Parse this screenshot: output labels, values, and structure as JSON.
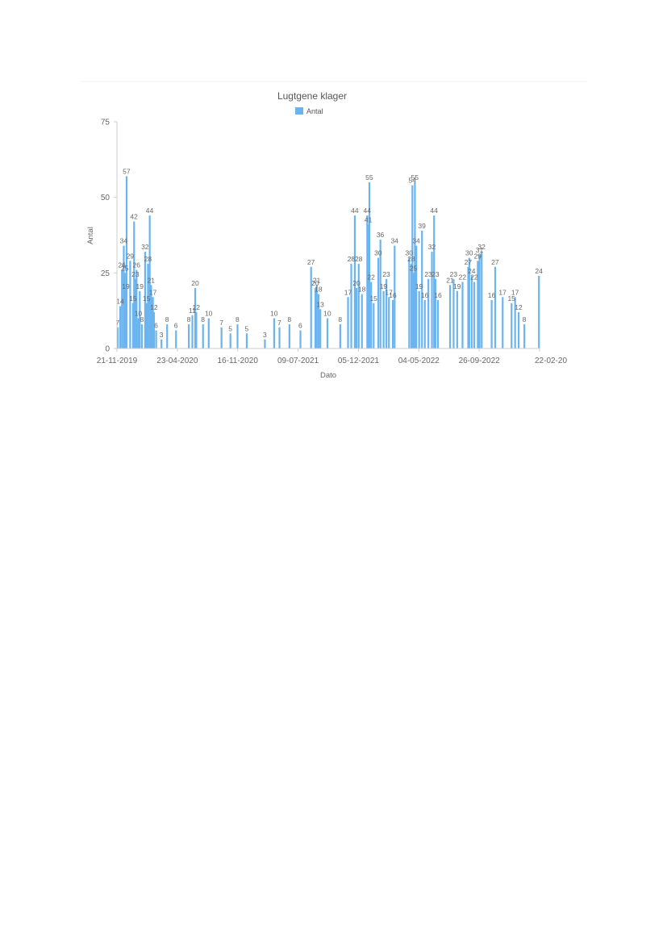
{
  "chart_data": {
    "type": "bar",
    "title": "Lugtgene klager",
    "xlabel": "Dato",
    "ylabel": "Antal",
    "ylim": [
      0,
      75
    ],
    "yticks": [
      0,
      25,
      50,
      75
    ],
    "x_range": [
      "2019-11-21",
      "2023-02-22"
    ],
    "x_ticks": [
      "21-11-2019",
      "23-04-2020",
      "16-11-2020",
      "09-07-2021",
      "05-12-2021",
      "04-05-2022",
      "26-09-2022",
      "22-02-20"
    ],
    "grid": false,
    "legend": "top",
    "series": [
      {
        "name": "Antal",
        "color": "#6ab4f0",
        "points": [
          [
            "2019-11-23",
            7
          ],
          [
            "2019-11-30",
            14
          ],
          [
            "2019-12-05",
            26
          ],
          [
            "2019-12-10",
            34
          ],
          [
            "2019-12-13",
            25
          ],
          [
            "2019-12-16",
            19
          ],
          [
            "2019-12-18",
            57
          ],
          [
            "2019-12-28",
            29
          ],
          [
            "2020-01-05",
            15
          ],
          [
            "2020-01-08",
            42
          ],
          [
            "2020-01-12",
            23
          ],
          [
            "2020-01-15",
            26
          ],
          [
            "2020-01-20",
            10
          ],
          [
            "2020-01-24",
            19
          ],
          [
            "2020-01-30",
            8
          ],
          [
            "2020-02-08",
            32
          ],
          [
            "2020-02-12",
            15
          ],
          [
            "2020-02-16",
            28
          ],
          [
            "2020-02-21",
            44
          ],
          [
            "2020-02-25",
            21
          ],
          [
            "2020-03-01",
            17
          ],
          [
            "2020-03-04",
            12
          ],
          [
            "2020-03-10",
            6
          ],
          [
            "2020-03-25",
            3
          ],
          [
            "2020-04-10",
            8
          ],
          [
            "2020-05-05",
            6
          ],
          [
            "2020-06-10",
            8
          ],
          [
            "2020-06-20",
            11
          ],
          [
            "2020-06-28",
            20
          ],
          [
            "2020-07-01",
            12
          ],
          [
            "2020-07-20",
            8
          ],
          [
            "2020-08-05",
            10
          ],
          [
            "2020-09-10",
            7
          ],
          [
            "2020-10-05",
            5
          ],
          [
            "2020-10-25",
            8
          ],
          [
            "2020-11-20",
            5
          ],
          [
            "2021-01-10",
            3
          ],
          [
            "2021-02-05",
            10
          ],
          [
            "2021-02-20",
            7
          ],
          [
            "2021-03-20",
            8
          ],
          [
            "2021-04-20",
            6
          ],
          [
            "2021-05-20",
            27
          ],
          [
            "2021-06-01",
            20
          ],
          [
            "2021-06-05",
            21
          ],
          [
            "2021-06-10",
            18
          ],
          [
            "2021-06-15",
            13
          ],
          [
            "2021-07-05",
            10
          ],
          [
            "2021-08-10",
            8
          ],
          [
            "2021-09-01",
            17
          ],
          [
            "2021-09-10",
            28
          ],
          [
            "2021-09-20",
            44
          ],
          [
            "2021-09-25",
            20
          ],
          [
            "2021-10-01",
            28
          ],
          [
            "2021-10-10",
            18
          ],
          [
            "2021-10-25",
            44
          ],
          [
            "2021-10-28",
            41
          ],
          [
            "2021-10-31",
            55
          ],
          [
            "2021-11-05",
            22
          ],
          [
            "2021-11-12",
            15
          ],
          [
            "2021-11-25",
            30
          ],
          [
            "2021-12-01",
            36
          ],
          [
            "2021-12-10",
            19
          ],
          [
            "2021-12-18",
            23
          ],
          [
            "2021-12-25",
            17
          ],
          [
            "2022-01-05",
            16
          ],
          [
            "2022-01-10",
            34
          ],
          [
            "2022-02-20",
            30
          ],
          [
            "2022-02-26",
            28
          ],
          [
            "2022-03-01",
            54
          ],
          [
            "2022-03-04",
            25
          ],
          [
            "2022-03-08",
            55
          ],
          [
            "2022-03-12",
            34
          ],
          [
            "2022-03-20",
            19
          ],
          [
            "2022-03-28",
            39
          ],
          [
            "2022-04-05",
            16
          ],
          [
            "2022-04-15",
            23
          ],
          [
            "2022-04-25",
            32
          ],
          [
            "2022-05-01",
            44
          ],
          [
            "2022-05-05",
            23
          ],
          [
            "2022-05-12",
            16
          ],
          [
            "2022-06-15",
            21
          ],
          [
            "2022-06-25",
            23
          ],
          [
            "2022-07-05",
            19
          ],
          [
            "2022-07-20",
            22
          ],
          [
            "2022-08-05",
            27
          ],
          [
            "2022-08-08",
            30
          ],
          [
            "2022-08-15",
            24
          ],
          [
            "2022-08-22",
            22
          ],
          [
            "2022-09-01",
            29
          ],
          [
            "2022-09-06",
            31
          ],
          [
            "2022-09-12",
            32
          ],
          [
            "2022-10-10",
            16
          ],
          [
            "2022-10-20",
            27
          ],
          [
            "2022-11-10",
            17
          ],
          [
            "2022-12-05",
            15
          ],
          [
            "2022-12-15",
            17
          ],
          [
            "2022-12-25",
            12
          ],
          [
            "2023-01-10",
            8
          ],
          [
            "2023-02-20",
            24
          ]
        ]
      }
    ]
  }
}
